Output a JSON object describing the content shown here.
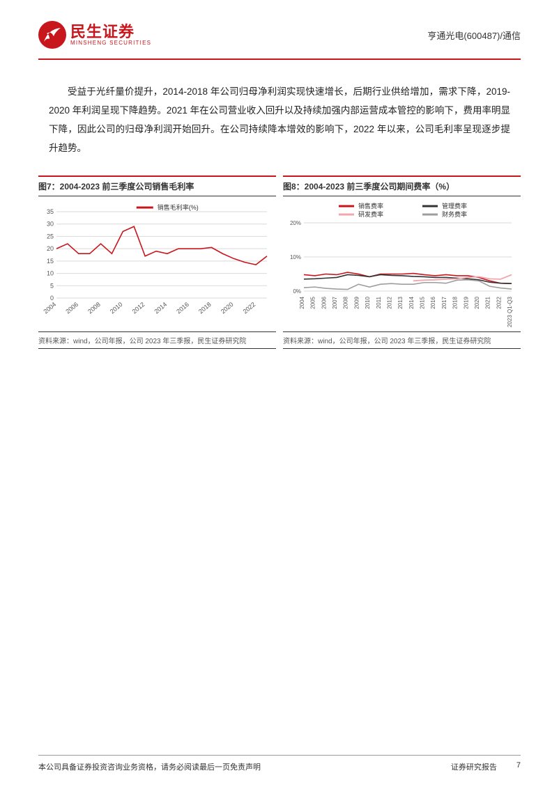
{
  "header": {
    "logo_cn": "民生证券",
    "logo_en": "MINSHENG SECURITIES",
    "right_text": "亨通光电(600487)/通信"
  },
  "body_paragraph": "受益于光纤量价提升，2014-2018 年公司归母净利润实现快速增长，后期行业供给增加，需求下降，2019-2020 年利润呈现下降趋势。2021 年在公司营业收入回升以及持续加强内部运营成本管控的影响下，费用率明显下降，因此公司的归母净利润开始回升。在公司持续降本增效的影响下，2022 年以来，公司毛利率呈现逐步提升趋势。",
  "chart_left": {
    "title": "图7：2004-2023 前三季度公司销售毛利率",
    "source": "资料来源：wind，公司年报，公司 2023 年三季报，民生证券研究院",
    "type": "line",
    "series_label": "销售毛利率(%)",
    "x_labels": [
      "2004",
      "2006",
      "2008",
      "2010",
      "2012",
      "2014",
      "2016",
      "2018",
      "2020",
      "2022"
    ],
    "y_ticks": [
      0,
      5,
      10,
      15,
      20,
      25,
      30,
      35
    ],
    "ylim": [
      0,
      35
    ],
    "values": [
      20,
      22,
      18,
      18,
      22,
      18,
      27,
      29,
      17,
      19,
      18,
      20,
      20,
      20,
      20.5,
      18,
      16,
      14.5,
      13.5,
      17
    ],
    "line_color": "#c8161d",
    "line_width": 1.6,
    "grid_color": "#d9d9d9",
    "background": "#ffffff",
    "axis_fontsize": 9,
    "label_fontsize": 9
  },
  "chart_right": {
    "title": "图8：2004-2023 前三季度公司期间费率（%）",
    "source": "资料来源：wind，公司年报，公司 2023 年三季报，民生证券研究院",
    "type": "line",
    "x_labels": [
      "2004",
      "2005",
      "2006",
      "2007",
      "2008",
      "2009",
      "2010",
      "2011",
      "2012",
      "2013",
      "2014",
      "2015",
      "2016",
      "2017",
      "2018",
      "2019",
      "2020",
      "2021",
      "2022",
      "2023 Q1-Q3"
    ],
    "y_ticks": [
      0,
      10,
      20
    ],
    "y_tick_labels": [
      "0%",
      "10%",
      "20%"
    ],
    "ylim": [
      0,
      20
    ],
    "series": [
      {
        "label": "销售费率",
        "color": "#c8161d",
        "width": 1.6,
        "values": [
          4.8,
          4.5,
          5.0,
          4.8,
          5.5,
          5.0,
          4.2,
          5.0,
          5.0,
          5.0,
          5.2,
          4.8,
          4.5,
          4.8,
          4.5,
          4.5,
          4.0,
          3.0,
          2.3,
          2.2
        ]
      },
      {
        "label": "管理费率",
        "color": "#333333",
        "width": 1.6,
        "values": [
          3.5,
          3.6,
          3.8,
          4.0,
          4.8,
          4.6,
          4.2,
          4.8,
          4.6,
          4.5,
          4.3,
          4.2,
          4.0,
          4.0,
          3.8,
          3.6,
          3.3,
          2.6,
          2.3,
          2.2
        ]
      },
      {
        "label": "研发费率",
        "color": "#f1a7ad",
        "width": 1.8,
        "values": [
          null,
          null,
          null,
          null,
          null,
          null,
          null,
          null,
          null,
          null,
          3.0,
          3.2,
          3.3,
          3.5,
          3.6,
          4.0,
          4.2,
          3.6,
          3.5,
          4.8
        ]
      },
      {
        "label": "财务费率",
        "color": "#9e9e9e",
        "width": 1.6,
        "values": [
          1.0,
          1.2,
          0.8,
          0.6,
          0.5,
          2.0,
          1.2,
          2.0,
          2.2,
          2.0,
          2.0,
          2.5,
          2.5,
          2.3,
          3.2,
          3.3,
          3.0,
          1.4,
          0.9,
          0.6
        ]
      }
    ],
    "legend_position": "top",
    "grid_color": "#d9d9d9",
    "background": "#ffffff",
    "axis_fontsize": 8,
    "label_fontsize": 9
  },
  "footer": {
    "left": "本公司具备证券投资咨询业务资格，请务必阅读最后一页免责声明",
    "right_label": "证券研究报告",
    "page_number": "7"
  },
  "colors": {
    "brand_red": "#c8161d",
    "text": "#333333",
    "grid": "#d9d9d9",
    "pink": "#f1a7ad",
    "grey": "#9e9e9e"
  }
}
